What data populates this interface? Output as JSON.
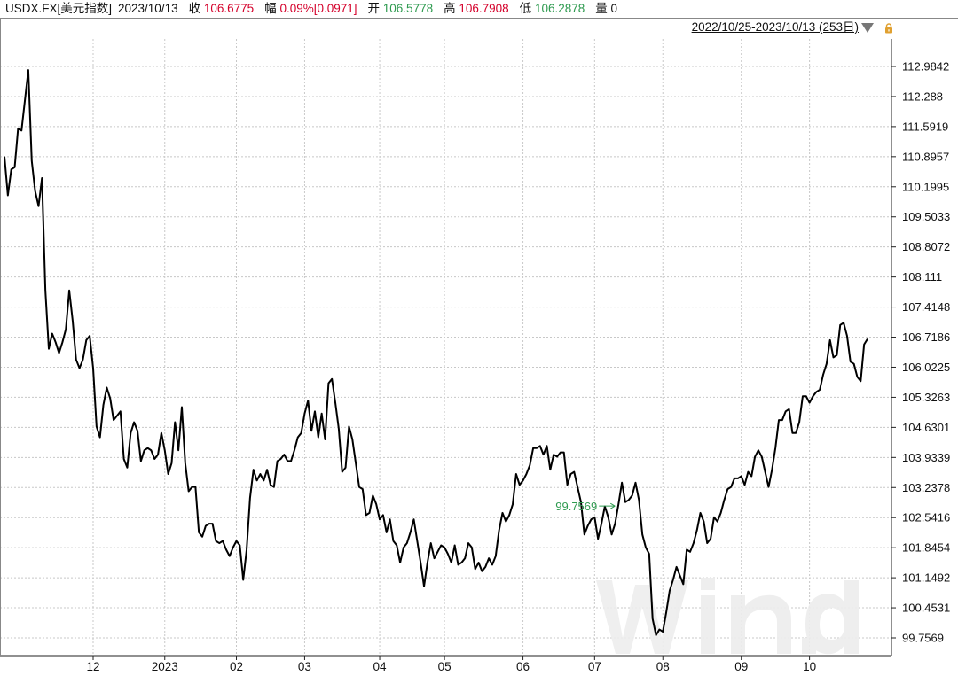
{
  "header": {
    "symbol": "USDX.FX[美元指数]",
    "date": "2023/10/13",
    "close_label": "收",
    "close_value": "106.6775",
    "change_label": "幅",
    "change_value": "0.09%[0.0971]",
    "open_label": "开",
    "open_value": "106.5778",
    "high_label": "高",
    "high_value": "106.7908",
    "low_label": "低",
    "low_value": "106.2878",
    "volume_label": "量",
    "volume_value": "0"
  },
  "range_selector": {
    "label": "2022/10/25-2023/10/13 (253日)",
    "dropdown_icon": "triangle-down-icon",
    "lock_icon": "lock-icon"
  },
  "colors": {
    "line": "#000000",
    "up": "#d4002a",
    "down": "#2e9a4f",
    "year_label": "#e0a030",
    "grid": "#c8c8c8"
  },
  "chart_data": {
    "type": "line",
    "title": "",
    "xlabel": "",
    "ylabel": "",
    "ylim": [
      99.45,
      113.6
    ],
    "y_ticks": [
      "112.9842",
      "112.288",
      "111.5919",
      "110.8957",
      "110.1995",
      "109.5033",
      "108.8072",
      "108.111",
      "107.4148",
      "106.7186",
      "106.0225",
      "105.3263",
      "104.6301",
      "103.9339",
      "103.2378",
      "102.5416",
      "101.8454",
      "101.1492",
      "100.4531",
      "99.7569"
    ],
    "x_ticks": [
      {
        "label": "12",
        "index": 26,
        "highlight": false
      },
      {
        "label": "2023",
        "index": 47,
        "highlight": true
      },
      {
        "label": "02",
        "index": 68,
        "highlight": false
      },
      {
        "label": "03",
        "index": 88,
        "highlight": false
      },
      {
        "label": "04",
        "index": 110,
        "highlight": false
      },
      {
        "label": "05",
        "index": 129,
        "highlight": false
      },
      {
        "label": "06",
        "index": 152,
        "highlight": false
      },
      {
        "label": "07",
        "index": 173,
        "highlight": false
      },
      {
        "label": "08",
        "index": 193,
        "highlight": false
      },
      {
        "label": "09",
        "index": 216,
        "highlight": false
      },
      {
        "label": "10",
        "index": 236,
        "highlight": false
      }
    ],
    "min_annotation": {
      "label": "99.7569",
      "index": 180
    },
    "series": [
      {
        "values": [
          110.9,
          110.0,
          110.6,
          110.65,
          111.55,
          111.5,
          112.2,
          112.9,
          110.8,
          110.1,
          109.75,
          110.4,
          107.8,
          106.45,
          106.8,
          106.6,
          106.35,
          106.6,
          106.9,
          107.8,
          107.1,
          106.2,
          106.0,
          106.2,
          106.65,
          106.75,
          106.0,
          104.65,
          104.4,
          105.15,
          105.55,
          105.3,
          104.8,
          104.9,
          105.0,
          103.9,
          103.7,
          104.5,
          104.75,
          104.55,
          103.85,
          104.1,
          104.15,
          104.1,
          103.9,
          104.0,
          104.5,
          104.1,
          103.55,
          103.8,
          104.75,
          104.1,
          105.1,
          103.8,
          103.15,
          103.25,
          103.25,
          102.2,
          102.1,
          102.35,
          102.4,
          102.4,
          102.0,
          101.95,
          102.0,
          101.8,
          101.65,
          101.85,
          102.0,
          101.9,
          101.1,
          101.8,
          103.0,
          103.65,
          103.4,
          103.55,
          103.4,
          103.65,
          103.3,
          103.25,
          103.85,
          103.9,
          104.0,
          103.85,
          103.85,
          104.1,
          104.4,
          104.5,
          104.95,
          105.25,
          104.55,
          105.0,
          104.4,
          104.95,
          104.35,
          105.65,
          105.75,
          105.2,
          104.6,
          103.6,
          103.7,
          104.65,
          104.35,
          103.8,
          103.25,
          103.2,
          102.6,
          102.65,
          103.05,
          102.85,
          102.5,
          102.6,
          102.2,
          102.5,
          102.0,
          101.9,
          101.5,
          101.85,
          101.95,
          102.2,
          102.5,
          102.0,
          101.5,
          100.95,
          101.5,
          101.95,
          101.6,
          101.75,
          101.9,
          101.85,
          101.7,
          101.5,
          101.9,
          101.45,
          101.5,
          101.6,
          101.95,
          101.85,
          101.35,
          101.5,
          101.3,
          101.4,
          101.6,
          101.45,
          101.65,
          102.25,
          102.65,
          102.45,
          102.6,
          102.85,
          103.55,
          103.3,
          103.4,
          103.55,
          103.75,
          104.15,
          104.15,
          104.2,
          104.0,
          104.2,
          103.65,
          104.0,
          103.95,
          104.05,
          104.05,
          103.3,
          103.55,
          103.6,
          103.25,
          102.9,
          102.15,
          102.35,
          102.5,
          102.55,
          102.05,
          102.4,
          102.8,
          102.55,
          102.15,
          102.4,
          102.85,
          103.35,
          102.9,
          102.95,
          103.05,
          103.35,
          102.95,
          102.15,
          101.85,
          101.7,
          100.2,
          99.82,
          99.95,
          99.9,
          100.35,
          100.85,
          101.1,
          101.4,
          101.2,
          101.0,
          101.8,
          101.75,
          101.95,
          102.25,
          102.65,
          102.45,
          101.95,
          102.05,
          102.55,
          102.45,
          102.65,
          102.95,
          103.2,
          103.25,
          103.45,
          103.45,
          103.5,
          103.3,
          103.6,
          103.5,
          103.95,
          104.1,
          103.95,
          103.6,
          103.25,
          103.65,
          104.15,
          104.8,
          104.8,
          105.0,
          105.05,
          104.5,
          104.5,
          104.75,
          105.35,
          105.35,
          105.2,
          105.35,
          105.45,
          105.5,
          105.85,
          106.1,
          106.65,
          106.25,
          106.3,
          107.0,
          107.05,
          106.75,
          106.15,
          106.1,
          105.8,
          105.7,
          106.55,
          106.6775
        ]
      }
    ]
  }
}
